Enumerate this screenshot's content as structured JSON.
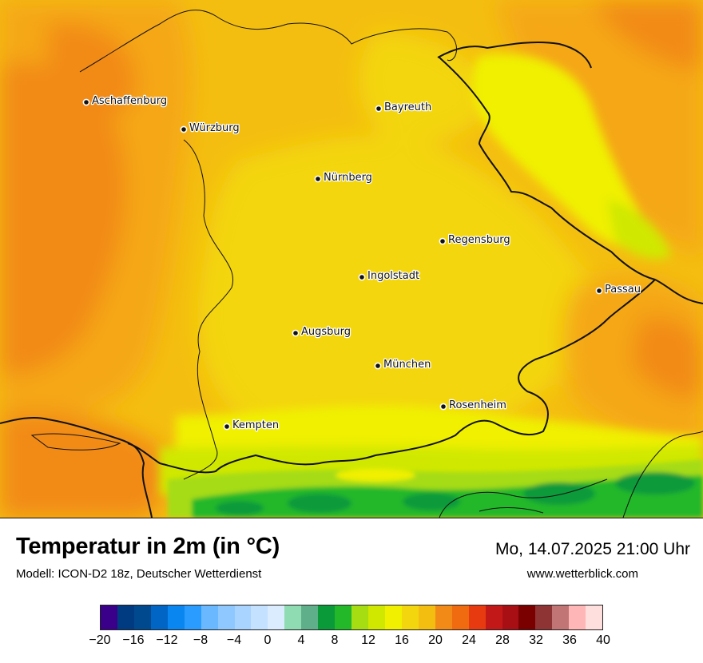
{
  "map": {
    "cities": [
      {
        "name": "Aschaffenburg"
      },
      {
        "name": "Würzburg"
      },
      {
        "name": "Bayreuth"
      },
      {
        "name": "Nürnberg"
      },
      {
        "name": "Regensburg"
      },
      {
        "name": "Ingolstadt"
      },
      {
        "name": "Passau"
      },
      {
        "name": "Augsburg"
      },
      {
        "name": "München"
      },
      {
        "name": "Rosenheim"
      },
      {
        "name": "Kempten"
      }
    ],
    "field_colors": {
      "warm_orange": "#f28a17",
      "orange": "#f5a712",
      "gold": "#f4be10",
      "yellow": "#f3d60e",
      "lemon": "#f0f000",
      "lime": "#d0e800",
      "yellowgreen": "#a6dc12",
      "green": "#22b829",
      "dark_green": "#0a9a3a"
    }
  },
  "footer": {
    "title": "Temperatur in 2m (in °C)",
    "subtitle": "Modell: ICON-D2 18z, Deutscher Wetterdienst",
    "datetime": "Mo, 14.07.2025 21:00 Uhr",
    "website": "www.wetterblick.com"
  },
  "legend": {
    "colors": [
      "#3a008a",
      "#003a80",
      "#00498f",
      "#0065c4",
      "#0a86f0",
      "#2a9cff",
      "#6ab8ff",
      "#8ec8ff",
      "#a9d4ff",
      "#c4e1ff",
      "#dcecff",
      "#8fdbb2",
      "#5fb08a",
      "#0a9a3a",
      "#22b829",
      "#a6dc12",
      "#d0e800",
      "#f0f000",
      "#f3d60e",
      "#f4be10",
      "#f28a17",
      "#f06a10",
      "#e83a10",
      "#c21818",
      "#a80f14",
      "#7a0000",
      "#8e3434",
      "#c27575",
      "#ffb6b6",
      "#ffdede"
    ],
    "ticks": [
      "−20",
      "−16",
      "−12",
      "−8",
      "−4",
      "0",
      "4",
      "8",
      "12",
      "16",
      "20",
      "24",
      "28",
      "32",
      "36",
      "40"
    ]
  }
}
